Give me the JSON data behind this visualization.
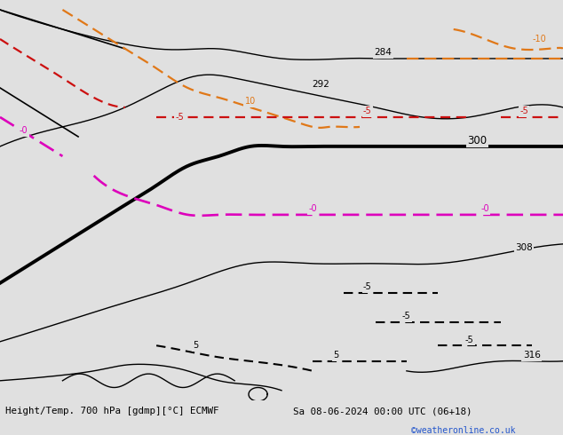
{
  "title_left": "Height/Temp. 700 hPa [gdmp][°C] ECMWF",
  "title_right": "Sa 08-06-2024 00:00 UTC (06+18)",
  "credit": "©weatheronline.co.uk",
  "background_color": "#e0e0e0",
  "land_color": "#c8f0b8",
  "border_color": "#888888",
  "fig_width": 6.34,
  "fig_height": 4.9,
  "dpi": 100,
  "extent": [
    -18.0,
    18.0,
    42.0,
    62.5
  ],
  "geo_black_thin": 1.0,
  "geo_black_thick": 2.8,
  "temp_orange_lw": 1.6,
  "temp_red_lw": 1.6,
  "temp_mag_lw": 1.9,
  "temp_blkd_lw": 1.5,
  "orange_color": "#e07818",
  "red_color": "#cc1010",
  "mag_color": "#dd00bb",
  "credit_color": "#2255cc"
}
